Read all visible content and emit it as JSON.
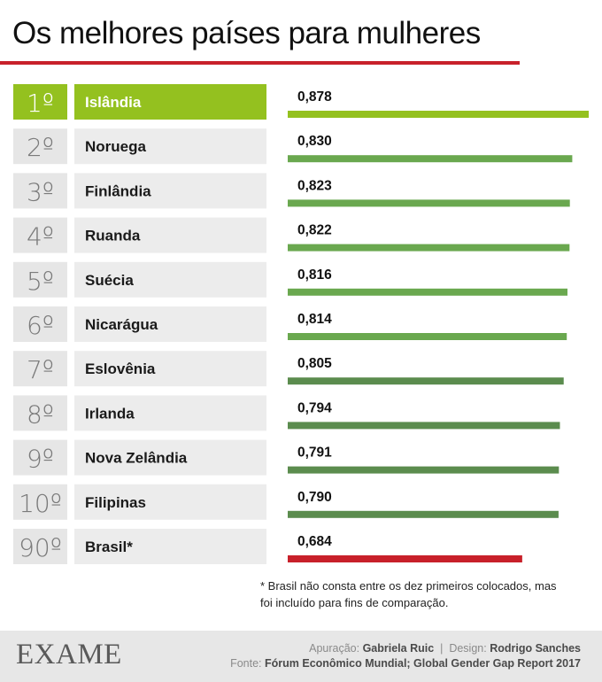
{
  "title": "Os melhores países para mulheres",
  "colors": {
    "accent_red": "#c8202a",
    "highlight_green": "#94c11f",
    "bar_light": "#6aa84f",
    "bar_dark": "#5b8c4e",
    "bar_brasil": "#c8202a"
  },
  "chart_data": {
    "type": "bar",
    "orientation": "horizontal",
    "categories": [
      "Islândia",
      "Noruega",
      "Finlândia",
      "Ruanda",
      "Suécia",
      "Nicarágua",
      "Eslovênia",
      "Irlanda",
      "Nova Zelândia",
      "Filipinas",
      "Brasil*"
    ],
    "ranks": [
      "1º",
      "2º",
      "3º",
      "4º",
      "5º",
      "6º",
      "7º",
      "8º",
      "9º",
      "10º",
      "90º"
    ],
    "values": [
      0.878,
      0.83,
      0.823,
      0.822,
      0.816,
      0.814,
      0.805,
      0.794,
      0.791,
      0.79,
      0.684
    ],
    "value_labels": [
      "0,878",
      "0,830",
      "0,823",
      "0,822",
      "0,816",
      "0,814",
      "0,805",
      "0,794",
      "0,791",
      "0,790",
      "0,684"
    ],
    "highlight_index": 0,
    "bar_colors": [
      "#94c11f",
      "#6aa84f",
      "#6aa84f",
      "#6aa84f",
      "#6aa84f",
      "#6aa84f",
      "#5b8c4e",
      "#5b8c4e",
      "#5b8c4e",
      "#5b8c4e",
      "#c8202a"
    ],
    "xlim": [
      0,
      0.878
    ],
    "grid": false,
    "title": "Os melhores países para mulheres",
    "xlabel": "",
    "ylabel": ""
  },
  "footnote": {
    "line1": "* Brasil não consta entre os dez primeiros colocados, mas",
    "line2": "foi incluído para fins de comparação."
  },
  "footer": {
    "logo": "EXAME",
    "apuracao_label": "Apuração:",
    "apuracao_name": "Gabriela Ruic",
    "separator": "|",
    "design_label": "Design:",
    "design_name": "Rodrigo Sanches",
    "fonte_label": "Fonte:",
    "fonte_value": "Fórum Econômico Mundial; Global Gender Gap Report 2017"
  }
}
